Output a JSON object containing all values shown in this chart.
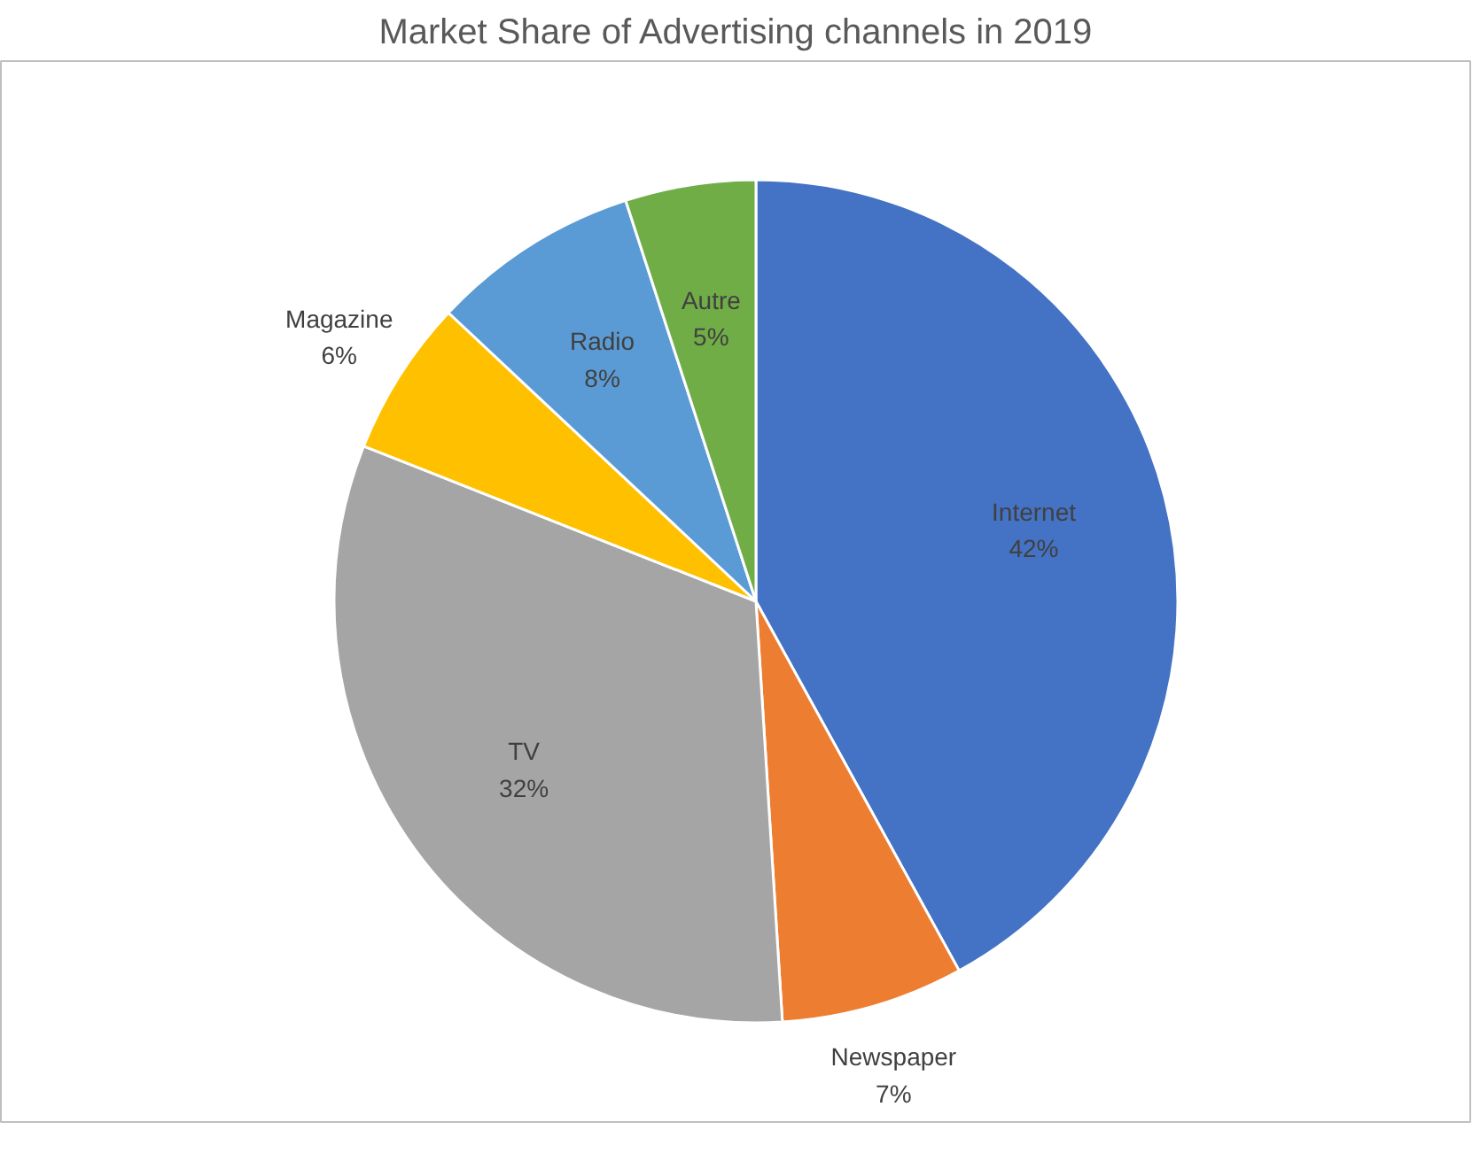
{
  "chart_data": {
    "type": "pie",
    "title": "Market Share of Advertising channels in 2019",
    "categories": [
      "Internet",
      "Newspaper",
      "TV",
      "Magazine",
      "Radio",
      "Autre"
    ],
    "values": [
      42,
      7,
      32,
      6,
      8,
      5
    ],
    "value_labels": [
      "42%",
      "7%",
      "32%",
      "6%",
      "8%",
      "5%"
    ],
    "colors": [
      "#4472c4",
      "#ed7d31",
      "#a5a5a5",
      "#ffc000",
      "#5b9bd5",
      "#70ad47"
    ],
    "legend": false
  }
}
